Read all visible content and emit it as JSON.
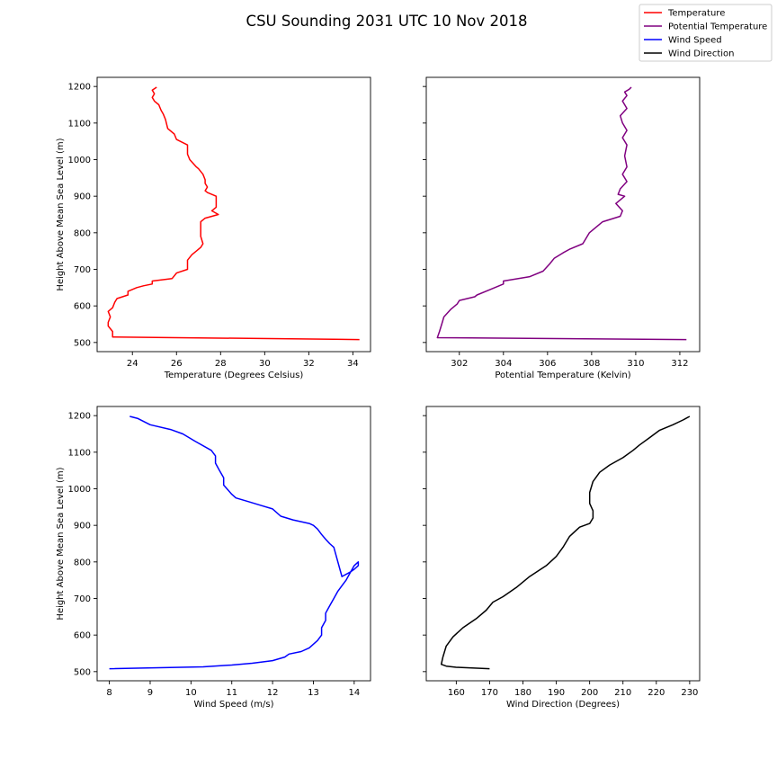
{
  "title": "CSU Sounding 2031 UTC 10 Nov 2018",
  "legend": {
    "placement": "top-right",
    "entries": [
      {
        "label": "Temperature",
        "color": "#ff0000"
      },
      {
        "label": "Potential Temperature",
        "color": "#800080"
      },
      {
        "label": "Wind Speed",
        "color": "#0000ff"
      },
      {
        "label": "Wind Direction",
        "color": "#000000"
      }
    ]
  },
  "chart_data": [
    {
      "type": "line",
      "xlabel": "Temperature (Degrees Celsius)",
      "ylabel": "Height Above Mean Sea Level (m)",
      "color": "#ff0000",
      "xlim": [
        22.4,
        34.8
      ],
      "ylim": [
        475,
        1225
      ],
      "xticks": [
        24,
        26,
        28,
        30,
        32,
        34
      ],
      "yticks": [
        500,
        600,
        700,
        800,
        900,
        1000,
        1100,
        1200
      ],
      "show_ytick_labels": true,
      "series": [
        {
          "x": [
            34.3,
            23.1,
            23.1,
            22.9,
            22.9,
            23.0,
            22.9,
            23.1,
            23.2,
            23.3,
            23.8,
            23.8,
            24.2,
            24.5,
            24.9,
            24.9,
            25.8,
            26.0,
            26.5,
            26.5,
            26.7,
            26.9,
            27.1,
            27.2,
            27.1,
            27.1,
            27.3,
            27.9,
            27.6,
            27.8,
            27.8,
            27.4,
            27.3,
            27.4,
            27.3,
            27.3,
            27.2,
            27.0,
            26.9,
            26.6,
            26.5,
            26.5,
            26.0,
            25.9,
            25.6,
            25.5,
            25.4,
            25.3,
            25.2,
            25.0,
            24.9,
            25.0,
            24.9,
            25.1
          ],
          "y": [
            508,
            515,
            530,
            545,
            555,
            570,
            585,
            595,
            610,
            620,
            630,
            640,
            650,
            655,
            660,
            668,
            675,
            690,
            700,
            725,
            740,
            750,
            760,
            770,
            790,
            830,
            840,
            850,
            860,
            870,
            900,
            910,
            915,
            925,
            935,
            945,
            960,
            975,
            980,
            1000,
            1015,
            1040,
            1055,
            1070,
            1085,
            1110,
            1125,
            1135,
            1150,
            1160,
            1170,
            1180,
            1190,
            1198
          ]
        }
      ]
    },
    {
      "type": "line",
      "xlabel": "Potential Temperature (Kelvin)",
      "ylabel": "",
      "color": "#800080",
      "xlim": [
        300.5,
        312.9
      ],
      "ylim": [
        475,
        1225
      ],
      "xticks": [
        302,
        304,
        306,
        308,
        310,
        312
      ],
      "yticks": [
        500,
        600,
        700,
        800,
        900,
        1000,
        1100,
        1200
      ],
      "show_ytick_labels": false,
      "series": [
        {
          "x": [
            312.3,
            301.0,
            301.1,
            301.2,
            301.3,
            301.6,
            301.9,
            302.0,
            302.7,
            302.8,
            303.4,
            304.0,
            304.0,
            305.2,
            305.8,
            306.1,
            306.3,
            306.7,
            307.0,
            307.6,
            307.9,
            308.5,
            309.3,
            309.4,
            309.1,
            309.5,
            309.2,
            309.3,
            309.6,
            309.4,
            309.6,
            309.5,
            309.6,
            309.4,
            309.6,
            309.4,
            309.3,
            309.6,
            309.4,
            309.6,
            309.5,
            309.7,
            309.8
          ],
          "y": [
            508,
            513,
            530,
            550,
            570,
            590,
            605,
            615,
            625,
            630,
            645,
            660,
            668,
            680,
            695,
            715,
            730,
            745,
            755,
            770,
            800,
            830,
            845,
            860,
            880,
            900,
            905,
            920,
            940,
            960,
            980,
            1010,
            1040,
            1060,
            1080,
            1100,
            1120,
            1140,
            1160,
            1175,
            1185,
            1192,
            1198
          ]
        }
      ]
    },
    {
      "type": "line",
      "xlabel": "Wind Speed (m/s)",
      "ylabel": "Height Above Mean Sea Level (m)",
      "color": "#0000ff",
      "xlim": [
        7.7,
        14.4
      ],
      "ylim": [
        475,
        1225
      ],
      "xticks": [
        8,
        9,
        10,
        11,
        12,
        13,
        14
      ],
      "yticks": [
        500,
        600,
        700,
        800,
        900,
        1000,
        1100,
        1200
      ],
      "show_ytick_labels": true,
      "series": [
        {
          "x": [
            8.0,
            10.3,
            11.0,
            11.5,
            12.0,
            12.3,
            12.4,
            12.7,
            12.9,
            13.0,
            13.1,
            13.2,
            13.2,
            13.3,
            13.3,
            13.4,
            13.5,
            13.6,
            13.7,
            13.8,
            13.9,
            14.0,
            14.1,
            14.1,
            14.0,
            13.9,
            13.7,
            13.5,
            13.4,
            13.3,
            13.2,
            13.1,
            13.0,
            12.9,
            12.5,
            12.2,
            12.0,
            11.7,
            11.4,
            11.1,
            11.0,
            10.8,
            10.8,
            10.7,
            10.6,
            10.6,
            10.5,
            10.1,
            9.8,
            9.5,
            9.0,
            8.7,
            8.5
          ],
          "y": [
            508,
            513,
            518,
            523,
            530,
            540,
            548,
            555,
            565,
            575,
            585,
            600,
            620,
            640,
            660,
            680,
            700,
            720,
            735,
            750,
            770,
            790,
            800,
            790,
            780,
            772,
            760,
            840,
            850,
            862,
            875,
            890,
            900,
            905,
            915,
            925,
            945,
            955,
            965,
            975,
            985,
            1010,
            1030,
            1050,
            1070,
            1090,
            1105,
            1130,
            1150,
            1162,
            1175,
            1192,
            1198
          ]
        }
      ]
    },
    {
      "type": "line",
      "xlabel": "Wind Direction (Degrees)",
      "ylabel": "",
      "color": "#000000",
      "xlim": [
        151,
        233
      ],
      "ylim": [
        475,
        1225
      ],
      "xticks": [
        160,
        170,
        180,
        190,
        200,
        210,
        220,
        230
      ],
      "yticks": [
        500,
        600,
        700,
        800,
        900,
        1000,
        1100,
        1200
      ],
      "show_ytick_labels": false,
      "series": [
        {
          "x": [
            170,
            160,
            157,
            155.5,
            156,
            157,
            159,
            162,
            166,
            169,
            171,
            174,
            178,
            182,
            187,
            190,
            192,
            194,
            197,
            200,
            201,
            201,
            200,
            200,
            201,
            203,
            206,
            210,
            213,
            215,
            218,
            221,
            225,
            228,
            230
          ],
          "y": [
            508,
            512,
            515,
            520,
            540,
            570,
            595,
            620,
            645,
            668,
            690,
            705,
            730,
            760,
            790,
            815,
            840,
            870,
            895,
            905,
            920,
            940,
            960,
            990,
            1020,
            1045,
            1065,
            1085,
            1105,
            1120,
            1140,
            1160,
            1175,
            1188,
            1198
          ]
        }
      ]
    }
  ]
}
